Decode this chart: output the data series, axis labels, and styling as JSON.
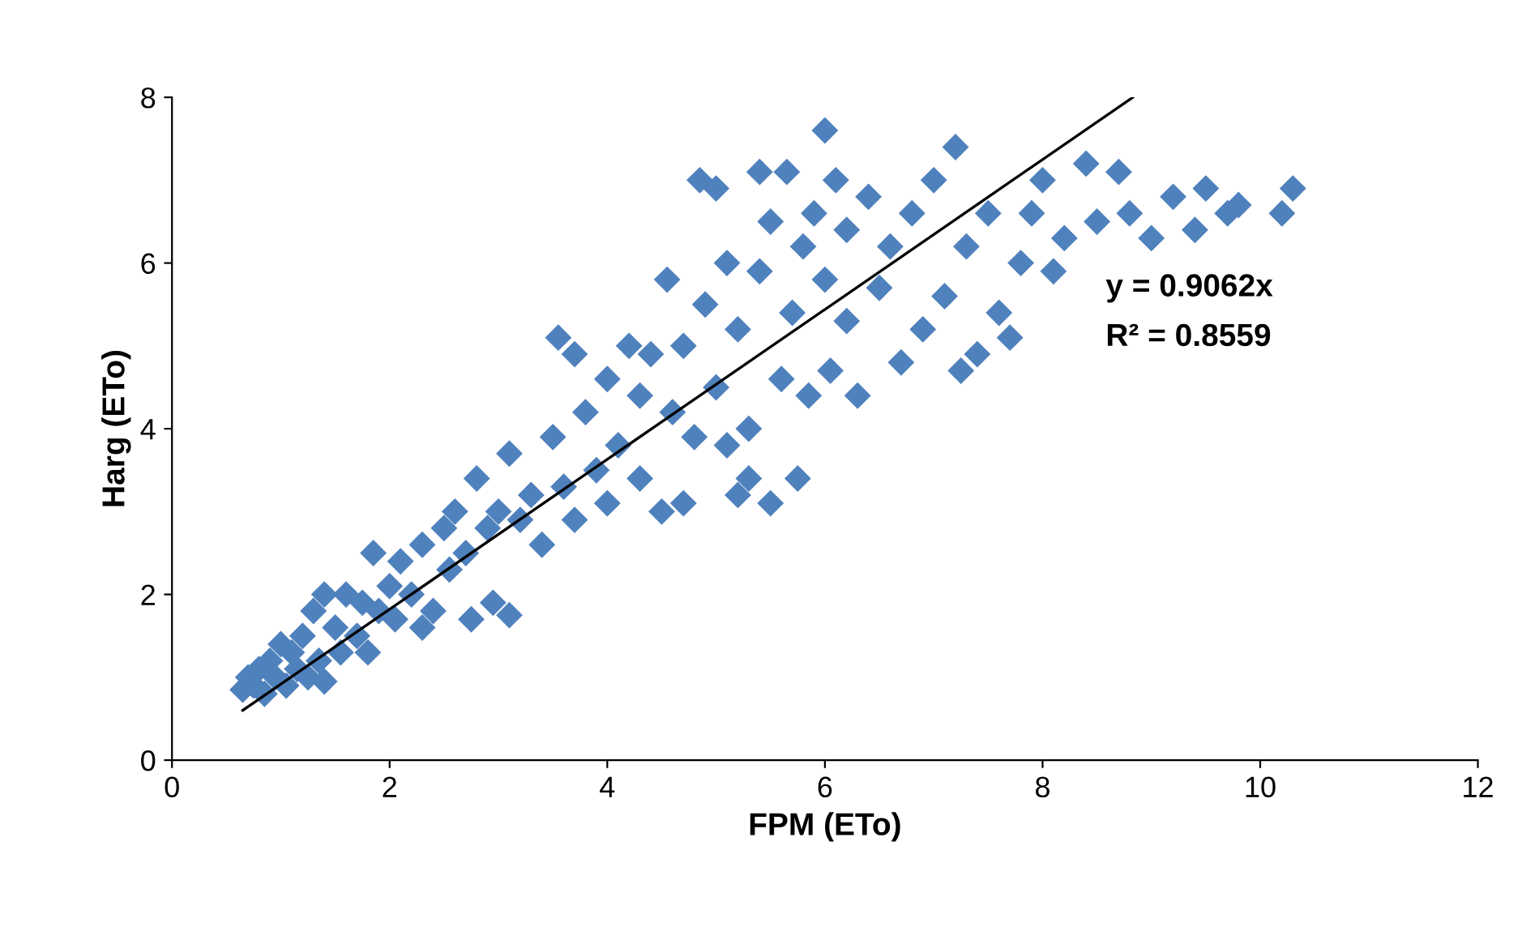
{
  "chart_data": {
    "type": "scatter",
    "xlabel": "FPM (ETo)",
    "ylabel": "Harg (ETo)",
    "xlim": [
      0,
      12
    ],
    "ylim": [
      0,
      8
    ],
    "xticks": [
      0,
      2,
      4,
      6,
      8,
      10,
      12
    ],
    "yticks": [
      0,
      2,
      4,
      6,
      8
    ],
    "grid": false,
    "legend": false,
    "annotations": [
      "y = 0.9062x",
      "R² = 0.8559"
    ],
    "series": [
      {
        "marker": "diamond",
        "color": "#4f81bd",
        "x": [
          0.65,
          0.7,
          0.75,
          0.8,
          0.85,
          0.9,
          0.95,
          1.0,
          1.05,
          1.1,
          1.15,
          1.2,
          1.25,
          1.3,
          1.35,
          1.4,
          1.4,
          1.5,
          1.55,
          1.6,
          1.7,
          1.75,
          1.8,
          1.85,
          1.9,
          2.0,
          2.05,
          2.1,
          2.2,
          2.3,
          2.3,
          2.4,
          2.5,
          2.55,
          2.6,
          2.7,
          2.75,
          2.8,
          2.9,
          2.95,
          3.0,
          3.1,
          3.1,
          3.2,
          3.3,
          3.4,
          3.5,
          3.55,
          3.6,
          3.7,
          3.7,
          3.8,
          3.9,
          4.0,
          4.0,
          4.1,
          4.2,
          4.3,
          4.3,
          4.4,
          4.5,
          4.55,
          4.6,
          4.7,
          4.7,
          4.8,
          4.85,
          4.9,
          5.0,
          5.0,
          5.1,
          5.1,
          5.2,
          5.2,
          5.3,
          5.3,
          5.4,
          5.4,
          5.5,
          5.5,
          5.6,
          5.65,
          5.7,
          5.75,
          5.8,
          5.85,
          5.9,
          6.0,
          6.0,
          6.05,
          6.1,
          6.2,
          6.2,
          6.3,
          6.4,
          6.5,
          6.6,
          6.7,
          6.8,
          6.9,
          7.0,
          7.1,
          7.2,
          7.25,
          7.3,
          7.4,
          7.5,
          7.6,
          7.7,
          7.8,
          7.9,
          8.0,
          8.1,
          8.2,
          8.4,
          8.5,
          8.7,
          8.8,
          9.0,
          9.2,
          9.4,
          9.5,
          9.7,
          9.8,
          10.2,
          10.3
        ],
        "values": [
          0.85,
          1.0,
          0.9,
          1.1,
          0.8,
          1.2,
          1.0,
          1.4,
          0.9,
          1.3,
          1.1,
          1.5,
          1.0,
          1.8,
          1.2,
          2.0,
          0.95,
          1.6,
          1.3,
          2.0,
          1.5,
          1.9,
          1.3,
          2.5,
          1.8,
          2.1,
          1.7,
          2.4,
          2.0,
          2.6,
          1.6,
          1.8,
          2.8,
          2.3,
          3.0,
          2.5,
          1.7,
          3.4,
          2.8,
          1.9,
          3.0,
          1.75,
          3.7,
          2.9,
          3.2,
          2.6,
          3.9,
          5.1,
          3.3,
          4.9,
          2.9,
          4.2,
          3.5,
          4.6,
          3.1,
          3.8,
          5.0,
          4.4,
          3.4,
          4.9,
          3.0,
          5.8,
          4.2,
          3.1,
          5.0,
          3.9,
          7.0,
          5.5,
          6.9,
          4.5,
          6.0,
          3.8,
          3.2,
          5.2,
          4.0,
          3.4,
          7.1,
          5.9,
          3.1,
          6.5,
          4.6,
          7.1,
          5.4,
          3.4,
          6.2,
          4.4,
          6.6,
          7.6,
          5.8,
          4.7,
          7.0,
          6.4,
          5.3,
          4.4,
          6.8,
          5.7,
          6.2,
          4.8,
          6.6,
          5.2,
          7.0,
          5.6,
          7.4,
          4.7,
          6.2,
          4.9,
          6.6,
          5.4,
          5.1,
          6.0,
          6.6,
          7.0,
          5.9,
          6.3,
          7.2,
          6.5,
          7.1,
          6.6,
          6.3,
          6.8,
          6.4,
          6.9,
          6.6,
          6.7,
          6.6,
          6.9
        ]
      },
      {
        "type": "line",
        "color": "#000000",
        "x": [
          0.65,
          8.83
        ],
        "values": [
          0.6,
          8.0
        ]
      }
    ]
  }
}
